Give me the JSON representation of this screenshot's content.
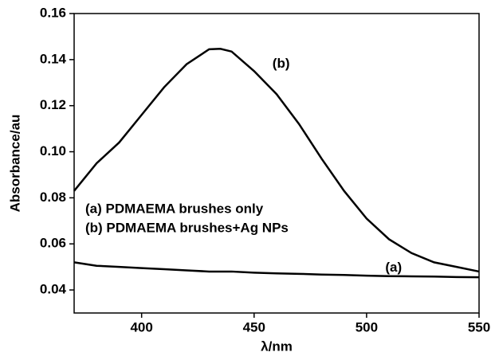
{
  "chart_data": {
    "type": "line",
    "x_label": "λ/nm",
    "y_label": "Absorbance/au",
    "x": [
      370,
      380,
      390,
      400,
      410,
      420,
      430,
      435,
      440,
      450,
      460,
      470,
      480,
      490,
      500,
      510,
      520,
      530,
      540,
      550
    ],
    "series": [
      {
        "name": "(a) PDMAEMA brushes only",
        "color": "#000000",
        "values": [
          0.052,
          0.0505,
          0.05,
          0.0495,
          0.049,
          0.0485,
          0.048,
          0.048,
          0.048,
          0.0475,
          0.0472,
          0.047,
          0.0467,
          0.0465,
          0.0462,
          0.046,
          0.0459,
          0.0458,
          0.0456,
          0.0455
        ]
      },
      {
        "name": "(b) PDMAEMA brushes+Ag NPs",
        "color": "#000000",
        "values": [
          0.083,
          0.095,
          0.104,
          0.116,
          0.128,
          0.138,
          0.1445,
          0.1447,
          0.1435,
          0.135,
          0.125,
          0.112,
          0.097,
          0.083,
          0.071,
          0.062,
          0.056,
          0.052,
          0.05,
          0.048
        ]
      }
    ],
    "annotations": [
      {
        "text": "(a)",
        "x": 512,
        "y": 0.0495
      },
      {
        "text": "(b)",
        "x": 462,
        "y": 0.138
      }
    ],
    "xlim": [
      370,
      550
    ],
    "xticks": [
      400,
      450,
      500,
      550
    ],
    "ylim": [
      0.03,
      0.16
    ],
    "yticks": [
      0.04,
      0.06,
      0.08,
      0.1,
      0.12,
      0.14,
      0.16
    ],
    "ytick_labels": [
      "0.04",
      "0.06",
      "0.08",
      "0.10",
      "0.12",
      "0.14",
      "0.16"
    ]
  }
}
